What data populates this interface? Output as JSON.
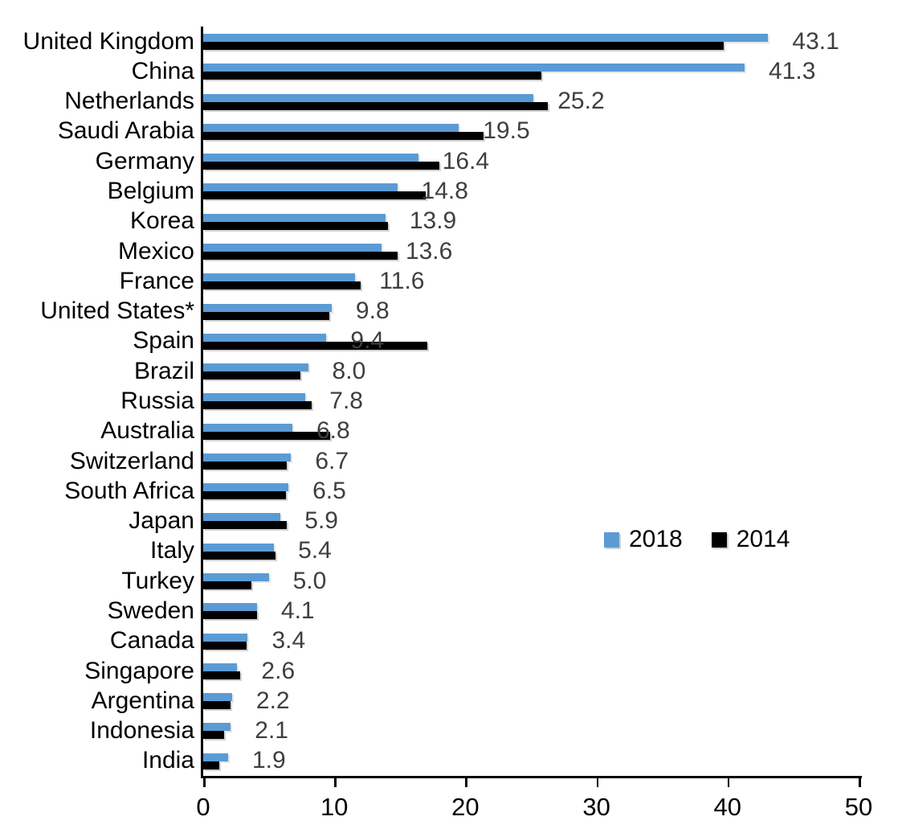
{
  "chart_data": {
    "type": "bar",
    "orientation": "horizontal",
    "categories": [
      "United Kingdom",
      "China",
      "Netherlands",
      "Saudi Arabia",
      "Germany",
      "Belgium",
      "Korea",
      "Mexico",
      "France",
      "United States*",
      "Spain",
      "Brazil",
      "Russia",
      "Australia",
      "Switzerland",
      "South Africa",
      "Japan",
      "Italy",
      "Turkey",
      "Sweden",
      "Canada",
      "Singapore",
      "Argentina",
      "Indonesia",
      "India"
    ],
    "series": [
      {
        "name": "2018",
        "color": "#5B9BD5",
        "values": [
          43.1,
          41.3,
          25.2,
          19.5,
          16.4,
          14.8,
          13.9,
          13.6,
          11.6,
          9.8,
          9.4,
          8.0,
          7.8,
          6.8,
          6.7,
          6.5,
          5.9,
          5.4,
          5.0,
          4.1,
          3.4,
          2.6,
          2.2,
          2.1,
          1.9
        ]
      },
      {
        "name": "2014",
        "color": "#000000",
        "values": [
          39.7,
          25.8,
          26.3,
          21.4,
          18.0,
          17.0,
          14.1,
          14.8,
          12.0,
          9.6,
          17.1,
          7.4,
          8.3,
          9.7,
          6.4,
          6.3,
          6.4,
          5.5,
          3.7,
          4.1,
          3.3,
          2.8,
          2.1,
          1.6,
          1.2
        ]
      }
    ],
    "data_labels": {
      "labeled_series": "2018",
      "format": "one-decimal",
      "color": "#3f3f3f"
    },
    "xlim": [
      0,
      50
    ],
    "xticks": [
      0,
      10,
      20,
      30,
      40,
      50
    ],
    "grid": false,
    "legend_position": "center-right",
    "title": ""
  }
}
